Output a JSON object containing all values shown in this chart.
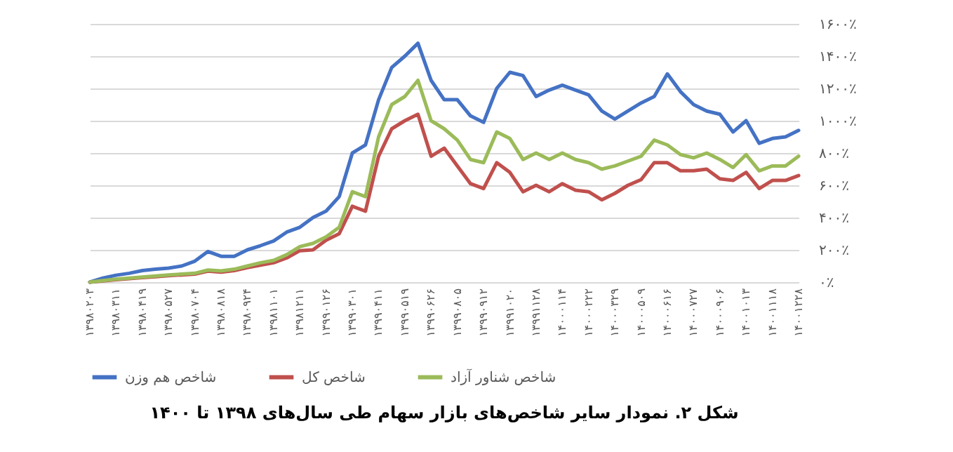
{
  "chart_data": {
    "type": "line",
    "title": "شکل ۲. نمودار سایر شاخص‌های بازار سهام طی سال‌های ۱۳۹۸ تا ۱۴۰۰",
    "categories": [
      "۱۳۹۸۰۲۰۳",
      null,
      "۱۳۹۸۰۳۱۱",
      null,
      "۱۳۹۸۰۴۱۹",
      null,
      "۱۳۹۸۰۵۲۷",
      null,
      "۱۳۹۸۰۷۰۴",
      null,
      "۱۳۹۸۰۸۱۸",
      null,
      "۱۳۹۸۰۹۲۴",
      null,
      "۱۳۹۸۱۱۰۱",
      null,
      "۱۳۹۸۱۲۱۱",
      null,
      "۱۳۹۹۰۱۲۶",
      null,
      "۱۳۹۹۰۳۰۱",
      null,
      "۱۳۹۹۰۴۱۱",
      null,
      "۱۳۹۹۰۵۱۹",
      null,
      "۱۳۹۹۰۶۲۶",
      null,
      "۱۳۹۹۰۸۰۵",
      null,
      "۱۳۹۹۰۹۱۲",
      null,
      "۱۳۹۹۱۰۲۰",
      null,
      "۱۳۹۹۱۱۲۸",
      null,
      "۱۴۰۰۰۱۱۴",
      null,
      "۱۴۰۰۰۲۲۲",
      null,
      "۱۴۰۰۰۳۲۹",
      null,
      "۱۴۰۰۰۵۰۹",
      null,
      "۱۴۰۰۰۶۱۶",
      null,
      "۱۴۰۰۰۷۲۷",
      null,
      "۱۴۰۰۰۹۰۶",
      null,
      "۱۴۰۰۱۰۱۳",
      null,
      "۱۴۰۰۱۱۱۸",
      null,
      "۱۴۰۰۱۲۲۸"
    ],
    "series": [
      {
        "name": "شاخص هم وزن",
        "color": "#4472c4",
        "values": [
          0,
          25,
          43,
          55,
          72,
          80,
          87,
          100,
          130,
          190,
          160,
          160,
          200,
          226,
          255,
          310,
          340,
          400,
          440,
          530,
          800,
          850,
          1130,
          1330,
          1400,
          1480,
          1250,
          1130,
          1130,
          1030,
          990,
          1200,
          1300,
          1280,
          1150,
          1190,
          1220,
          1190,
          1160,
          1060,
          1010,
          1060,
          1110,
          1150,
          1290,
          1180,
          1100,
          1060,
          1040,
          930,
          1000,
          860,
          890,
          900,
          940
        ]
      },
      {
        "name": "شاخص کل",
        "color": "#c0504d",
        "values": [
          0,
          8,
          15,
          22,
          28,
          34,
          40,
          45,
          50,
          68,
          62,
          72,
          90,
          105,
          120,
          150,
          195,
          200,
          260,
          300,
          470,
          440,
          780,
          950,
          1000,
          1040,
          780,
          830,
          720,
          610,
          580,
          740,
          680,
          560,
          600,
          560,
          610,
          570,
          560,
          510,
          550,
          600,
          635,
          740,
          740,
          690,
          690,
          700,
          640,
          630,
          680,
          580,
          630,
          630,
          660
        ]
      },
      {
        "name": "شاخص شناور آزاد",
        "color": "#9bbb59",
        "values": [
          0,
          10,
          18,
          25,
          32,
          38,
          45,
          50,
          55,
          75,
          70,
          80,
          100,
          120,
          135,
          170,
          220,
          240,
          280,
          340,
          560,
          530,
          900,
          1100,
          1150,
          1250,
          1000,
          950,
          880,
          760,
          740,
          930,
          890,
          760,
          800,
          760,
          800,
          760,
          740,
          700,
          720,
          750,
          780,
          880,
          850,
          790,
          770,
          800,
          760,
          710,
          790,
          690,
          720,
          720,
          780
        ]
      }
    ],
    "ylim": [
      0,
      1600
    ],
    "yticks": [
      {
        "value": 0,
        "label": "۰٪"
      },
      {
        "value": 200,
        "label": "۲۰۰٪"
      },
      {
        "value": 400,
        "label": "۴۰۰٪"
      },
      {
        "value": 600,
        "label": "۶۰۰٪"
      },
      {
        "value": 800,
        "label": "۸۰۰٪"
      },
      {
        "value": 1000,
        "label": "۱۰۰۰٪"
      },
      {
        "value": 1200,
        "label": "۱۲۰۰٪"
      },
      {
        "value": 1400,
        "label": "۱۴۰۰٪"
      },
      {
        "value": 1600,
        "label": "۱۶۰۰٪"
      }
    ],
    "grid": "y",
    "legend": "bottom",
    "marker": "none",
    "line_style": "solid"
  }
}
